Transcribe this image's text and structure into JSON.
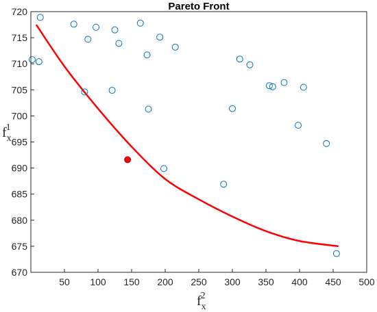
{
  "chart_data": {
    "type": "scatter",
    "title": "Pareto Front",
    "xlabel": {
      "base": "f",
      "sub": "x",
      "sup": "2"
    },
    "ylabel": {
      "base": "f",
      "sub": "x",
      "sup": "1"
    },
    "xlim": [
      0,
      500
    ],
    "ylim": [
      670,
      720
    ],
    "xticks": [
      50,
      100,
      150,
      200,
      250,
      300,
      350,
      400,
      450,
      500
    ],
    "yticks": [
      670,
      675,
      680,
      685,
      690,
      695,
      700,
      705,
      710,
      715,
      720
    ],
    "grid": false,
    "colors": {
      "points": "#0072BD",
      "curve": "#FF0000",
      "highlight": "#FF0000",
      "highlight_edge": "#A2142F"
    },
    "series": [
      {
        "kind": "scatter",
        "marker": "open-circle",
        "x": [
          2,
          12,
          14,
          64,
          80,
          85,
          97,
          121,
          125,
          131,
          163,
          173,
          175,
          192,
          198,
          215,
          287,
          300,
          311,
          326,
          355,
          360,
          377,
          398,
          406,
          440,
          455
        ],
        "y": [
          710.8,
          710.4,
          718.9,
          717.6,
          704.6,
          714.7,
          717.0,
          704.9,
          716.5,
          713.9,
          717.8,
          711.7,
          701.3,
          715.1,
          689.9,
          713.2,
          686.9,
          701.4,
          710.9,
          709.8,
          705.8,
          705.6,
          706.4,
          698.2,
          705.5,
          694.7,
          673.6
        ]
      },
      {
        "kind": "line",
        "x": [
          8,
          50,
          100,
          150,
          200,
          250,
          300,
          350,
          400,
          458
        ],
        "y": [
          717.5,
          709.5,
          701.4,
          694.1,
          687.9,
          684.0,
          680.7,
          677.9,
          676.0,
          675.0
        ]
      },
      {
        "kind": "highlight",
        "marker": "filled-circle",
        "x": [
          144
        ],
        "y": [
          691.6
        ]
      }
    ]
  }
}
